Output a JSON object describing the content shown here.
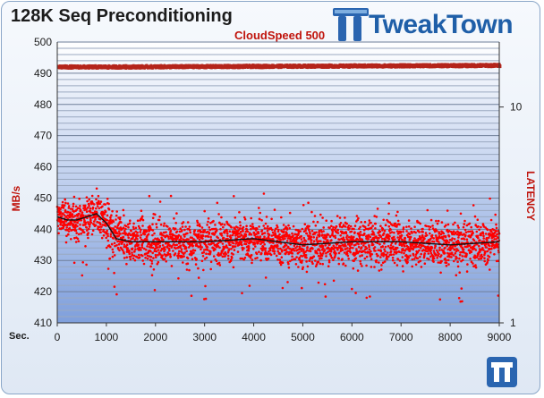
{
  "header": {
    "title": "128K Seq Preconditioning",
    "brand": "TweakTown"
  },
  "chart_data": {
    "type": "scatter",
    "title": "128K Seq Preconditioning",
    "xlabel": "Sec.",
    "ylabel": "MB/s",
    "y2label": "LATENCY",
    "xlim": [
      0,
      9000
    ],
    "ylim": [
      410,
      500
    ],
    "y2lim": [
      1,
      20
    ],
    "y2scale": "log",
    "x_ticks": [
      "0",
      "1000",
      "2000",
      "3000",
      "4000",
      "5000",
      "6000",
      "7000",
      "8000",
      "9000"
    ],
    "y_ticks": [
      "410",
      "420",
      "430",
      "440",
      "450",
      "460",
      "470",
      "480",
      "490",
      "500"
    ],
    "y2_ticks": [
      "1",
      "10"
    ],
    "grid": true,
    "legend": "top-center",
    "series": [
      {
        "name": "CloudSpeed 500",
        "kind": "throughput-scatter",
        "color": "#ff0000",
        "x": [
          0,
          200,
          400,
          600,
          800,
          1000,
          1200,
          1500,
          2000,
          3000,
          4000,
          5000,
          6000,
          7000,
          8000,
          9000
        ],
        "values": [
          444,
          443,
          443,
          444,
          445,
          442,
          437,
          436,
          436,
          436,
          437,
          435,
          436,
          436,
          435,
          436
        ]
      },
      {
        "kind": "moving-average",
        "color": "#111111",
        "x": [
          0,
          200,
          400,
          600,
          800,
          1000,
          1200,
          1500,
          2000,
          3000,
          4000,
          5000,
          6000,
          7000,
          8000,
          9000
        ],
        "values": [
          444,
          443,
          443,
          444,
          445,
          442,
          437,
          436,
          436,
          436,
          437,
          435,
          436,
          436,
          435,
          436
        ]
      },
      {
        "kind": "latency",
        "axis": "right",
        "color": "#b5251c",
        "x": [
          0,
          1000,
          9000
        ],
        "values": [
          492,
          492,
          492.5
        ]
      }
    ]
  }
}
